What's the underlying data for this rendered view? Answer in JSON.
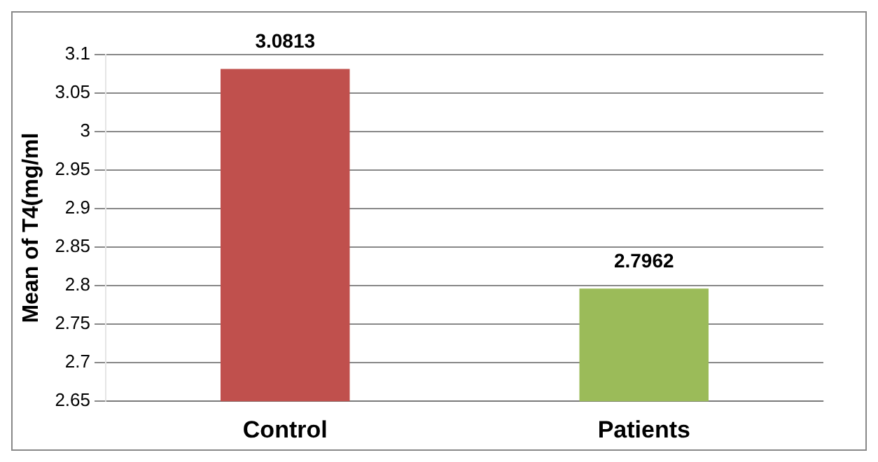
{
  "chart_data": {
    "type": "bar",
    "ylabel": "Mean of T4(mg/ml",
    "categories": [
      "Control",
      "Patients"
    ],
    "values": [
      3.0813,
      2.7962
    ],
    "colors": [
      "#c0504d",
      "#9bbb59"
    ],
    "ylim": [
      2.65,
      3.1
    ],
    "yticks": [
      2.65,
      2.7,
      2.75,
      2.8,
      2.85,
      2.9,
      2.95,
      3,
      3.05,
      3.1
    ],
    "grid": "y",
    "data_labels": true
  }
}
